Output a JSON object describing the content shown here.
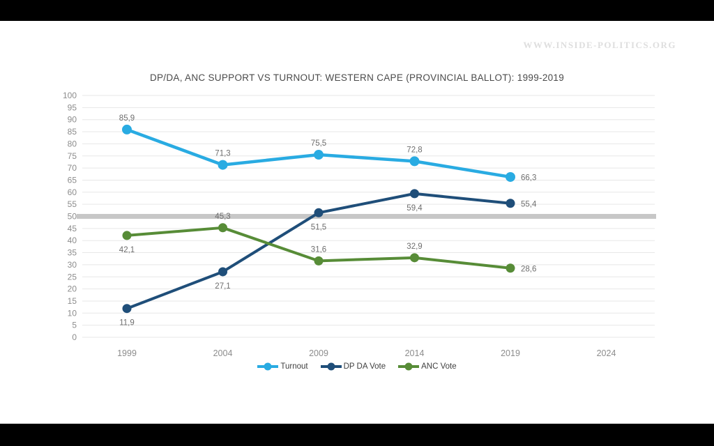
{
  "page": {
    "watermark": "WWW.INSIDE-POLITICS.ORG",
    "background_color": "#000000",
    "panel_color": "#ffffff"
  },
  "chart_data": {
    "type": "line",
    "title": "DP/DA, ANC SUPPORT VS TURNOUT: WESTERN CAPE (PROVINCIAL BALLOT): 1999-2019",
    "x_tick_labels": [
      "1999",
      "2004",
      "2009",
      "2014",
      "2019",
      "2024"
    ],
    "x": [
      1999,
      2004,
      2009,
      2014,
      2019
    ],
    "ylim": [
      0,
      100
    ],
    "y_tick_step": 5,
    "grid": true,
    "gridline_color": "#e7e7e7",
    "reference_band_value": 50,
    "reference_band_color": "#c7c7c7",
    "legend_position": "bottom",
    "decimal_separator": ",",
    "series": [
      {
        "name": "Turnout",
        "color": "#29ABE2",
        "values": [
          85.9,
          71.3,
          75.5,
          72.8,
          66.3
        ],
        "labels": [
          "85,9",
          "71,3",
          "75,5",
          "72,8",
          "66,3"
        ],
        "label_placements": [
          "above",
          "above",
          "above",
          "above",
          "right"
        ]
      },
      {
        "name": "DP DA Vote",
        "color": "#1F4E79",
        "values": [
          11.9,
          27.1,
          51.5,
          59.4,
          55.4
        ],
        "labels": [
          "11,9",
          "27,1",
          "51,5",
          "59,4",
          "55,4"
        ],
        "label_placements": [
          "below",
          "below",
          "below",
          "below",
          "right"
        ]
      },
      {
        "name": "ANC Vote",
        "color": "#578C37",
        "values": [
          42.1,
          45.3,
          31.6,
          32.9,
          28.6
        ],
        "labels": [
          "42,1",
          "45,3",
          "31,6",
          "32,9",
          "28,6"
        ],
        "label_placements": [
          "below",
          "above",
          "above",
          "above",
          "right"
        ]
      }
    ]
  }
}
